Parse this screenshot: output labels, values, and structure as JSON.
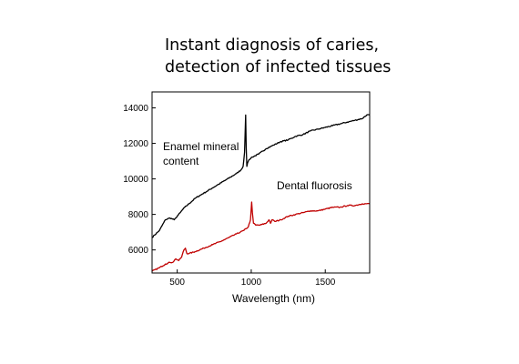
{
  "title": {
    "line1": "Instant diagnosis of caries,",
    "line2": "detection of infected tissues"
  },
  "chart_data": {
    "type": "line",
    "title": "",
    "xlabel": "Wavelength (nm)",
    "ylabel": "",
    "xlim": [
      330,
      1800
    ],
    "ylim": [
      4700,
      14900
    ],
    "x_ticks": [
      500,
      1000,
      1500
    ],
    "x_tick_labels": [
      "500",
      "1000",
      "1500"
    ],
    "y_ticks": [
      6000,
      8000,
      10000,
      12000,
      14000
    ],
    "y_tick_labels": [
      "6000",
      "8000",
      "10000",
      "12000",
      "14000"
    ],
    "grid": false,
    "legend": "none",
    "annotations": [
      {
        "lines": [
          "Enamel mineral",
          "content"
        ],
        "series": "Enamel mineral content"
      },
      {
        "lines": [
          "Dental fluorosis"
        ],
        "series": "Dental fluorosis"
      }
    ],
    "series": [
      {
        "name": "Enamel mineral content",
        "color": "#000000",
        "x": [
          330,
          380,
          420,
          450,
          480,
          500,
          520,
          550,
          580,
          620,
          660,
          700,
          740,
          780,
          820,
          860,
          900,
          930,
          945,
          955,
          962,
          966,
          970,
          975,
          980,
          990,
          1000,
          1050,
          1100,
          1150,
          1200,
          1250,
          1300,
          1350,
          1400,
          1450,
          1500,
          1550,
          1600,
          1650,
          1700,
          1750,
          1780,
          1800
        ],
        "y": [
          6700,
          7100,
          7700,
          7800,
          7700,
          7900,
          8100,
          8400,
          8600,
          8900,
          9100,
          9300,
          9500,
          9700,
          9900,
          10100,
          10300,
          10500,
          10700,
          11500,
          13600,
          11800,
          10700,
          10900,
          11000,
          11100,
          11200,
          11400,
          11700,
          11900,
          12100,
          12200,
          12400,
          12500,
          12700,
          12800,
          12900,
          13000,
          13100,
          13200,
          13300,
          13400,
          13600,
          13600
        ]
      },
      {
        "name": "Dental fluorosis",
        "color": "#c00000",
        "x": [
          330,
          380,
          420,
          450,
          470,
          490,
          510,
          530,
          545,
          555,
          565,
          580,
          620,
          680,
          740,
          800,
          850,
          900,
          950,
          980,
          995,
          1003,
          1008,
          1015,
          1030,
          1060,
          1100,
          1120,
          1130,
          1140,
          1160,
          1200,
          1250,
          1300,
          1350,
          1400,
          1450,
          1500,
          1550,
          1600,
          1650,
          1700,
          1750,
          1780,
          1800
        ],
        "y": [
          4800,
          5000,
          5200,
          5300,
          5300,
          5500,
          5400,
          5600,
          6000,
          6100,
          5800,
          5800,
          5900,
          6100,
          6300,
          6500,
          6700,
          6900,
          7100,
          7300,
          7700,
          8700,
          8100,
          7500,
          7400,
          7400,
          7500,
          7700,
          7500,
          7700,
          7600,
          7700,
          7900,
          8000,
          8100,
          8200,
          8200,
          8300,
          8400,
          8400,
          8500,
          8500,
          8600,
          8600,
          8600
        ]
      }
    ]
  }
}
